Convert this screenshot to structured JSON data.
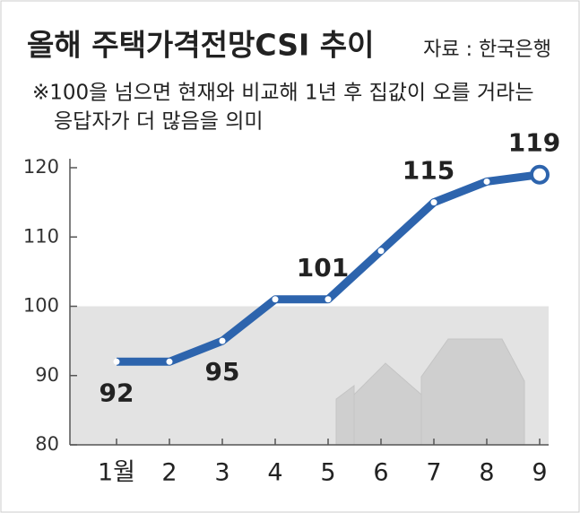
{
  "chart_data": {
    "type": "line",
    "title": "올해 주택가격전망CSI 추이",
    "source": "자료 : 한국은행",
    "note": [
      "※100을 넘으면 현재와 비교해 1년 후 집값이 오를 거라는",
      "응답자가 더 많음을 의미"
    ],
    "categories": [
      "1월",
      "2",
      "3",
      "4",
      "5",
      "6",
      "7",
      "8",
      "9"
    ],
    "values": [
      92,
      92,
      95,
      101,
      101,
      108,
      115,
      118,
      119
    ],
    "value_labels": [
      "92",
      null,
      "95",
      null,
      "101",
      null,
      "115",
      null,
      "119"
    ],
    "color": "#2d64ad",
    "shade_band": [
      80,
      100
    ],
    "ylim": [
      80,
      120
    ],
    "yticks": [
      80,
      90,
      100,
      110,
      120
    ]
  }
}
